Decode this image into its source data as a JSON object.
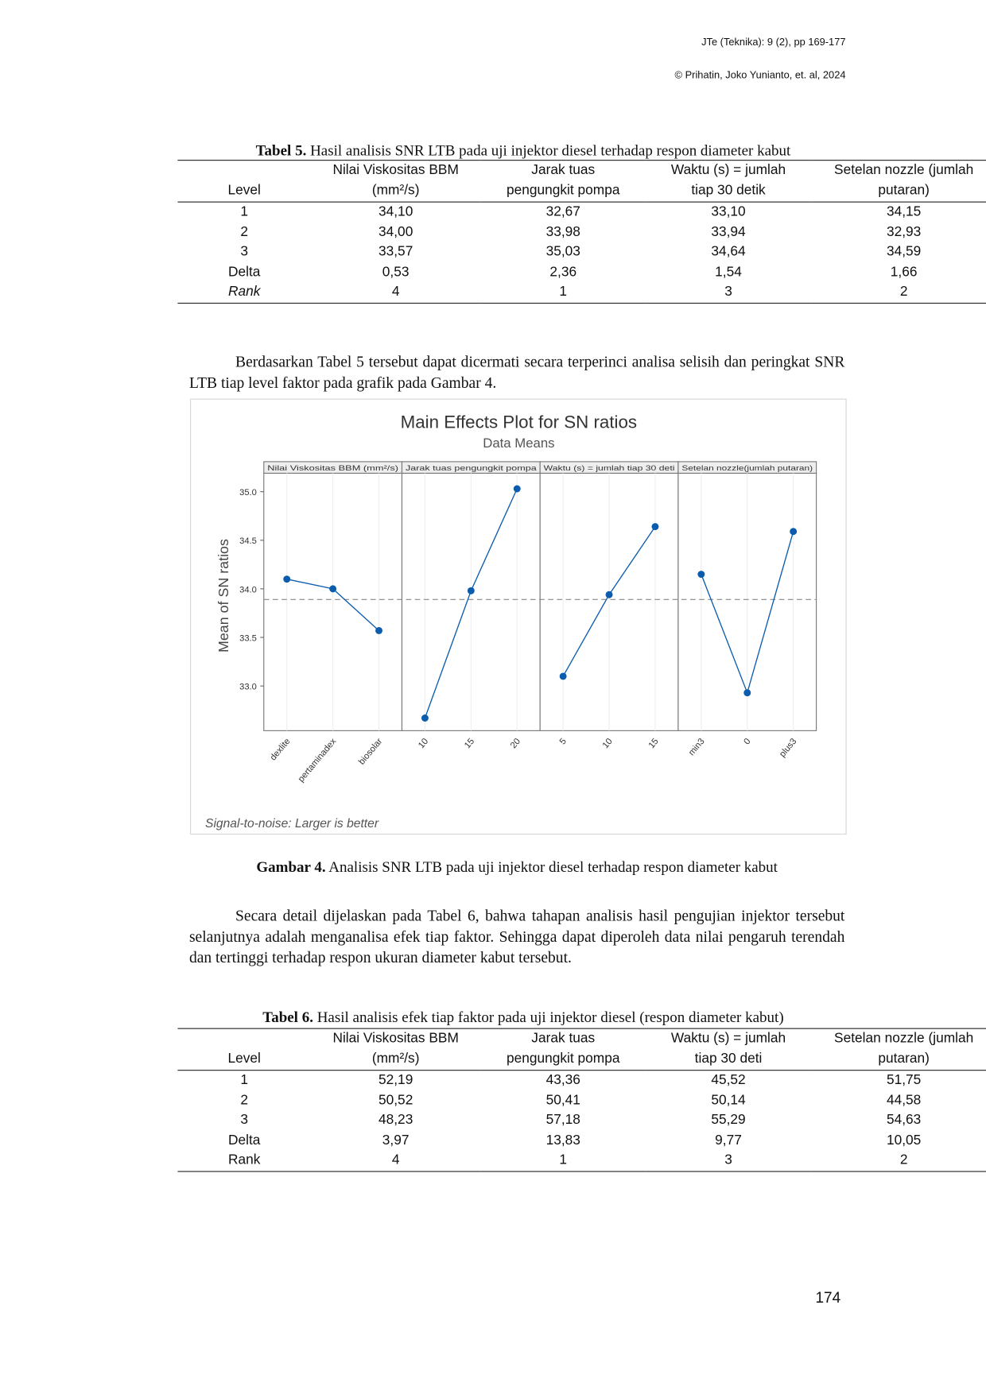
{
  "header": {
    "journal": "JTe (Teknika):  9 (2), pp 169-177",
    "copyright": "© Prihatin, Joko Yunianto, et. al, 2024"
  },
  "table5": {
    "caption_label": "Tabel 5.",
    "caption": "Hasil analisis SNR LTB pada uji injektor diesel terhadap respon diameter kabut",
    "header": [
      "Level",
      "Nilai Viskositas BBM (mm²/s)",
      "Jarak tuas pengungkit pompa",
      "Waktu (s) = jumlah tiap 30 detik",
      "Setelan nozzle (jumlah putaran)"
    ],
    "rows": [
      [
        "1",
        "34,10",
        "32,67",
        "33,10",
        "34,15"
      ],
      [
        "2",
        "34,00",
        "33,98",
        "33,94",
        "32,93"
      ],
      [
        "3",
        "33,57",
        "35,03",
        "34,64",
        "34,59"
      ],
      [
        "Delta",
        "0,53",
        "2,36",
        "1,54",
        "1,66"
      ],
      [
        "Rank",
        "4",
        "1",
        "3",
        "2"
      ]
    ]
  },
  "paragraph1": "Berdasarkan Tabel 5 tersebut dapat dicermati secara terperinci analisa selisih dan peringkat SNR LTB tiap level faktor pada grafik pada Gambar 4.",
  "chart_data": {
    "type": "panel_line",
    "title": "Main Effects Plot for SN ratios",
    "subtitle": "Data Means",
    "ylabel": "Mean of SN ratios",
    "footnote": "Signal-to-noise: Larger is better",
    "ylim": [
      32.54,
      35.19
    ],
    "yticks": [
      {
        "value": 33,
        "label": "33.0"
      },
      33.5,
      {
        "value": 34,
        "label": "34.0"
      },
      34.5,
      {
        "value": 35,
        "label": "35.0"
      }
    ],
    "mean_line": 33.89,
    "color": "#0b5cad",
    "panels": [
      {
        "title": "Nilai Viskositas BBM (mm²/s)",
        "categories": [
          "dexlite",
          "pertaminadex",
          "biosolar"
        ],
        "values": [
          34.1,
          34.0,
          33.57
        ]
      },
      {
        "title": "Jarak tuas pengungkit pompa",
        "categories": [
          "10",
          "15",
          "20"
        ],
        "values": [
          32.67,
          33.98,
          35.03
        ]
      },
      {
        "title": "Waktu (s) = jumlah tiap 30 deti",
        "categories": [
          "5",
          "10",
          "15"
        ],
        "values": [
          33.1,
          33.94,
          34.64
        ]
      },
      {
        "title": "Setelan nozzle(jumlah putaran)",
        "categories": [
          "min3",
          "0",
          "plus3"
        ],
        "values": [
          34.15,
          32.93,
          34.59
        ]
      }
    ]
  },
  "figure": {
    "caption_label": "Gambar 4.",
    "caption": "Analisis SNR LTB pada uji injektor diesel terhadap respon diameter kabut"
  },
  "paragraph2": "Secara detail dijelaskan pada Tabel 6, bahwa tahapan analisis hasil pengujian injektor tersebut selanjutnya adalah menganalisa efek tiap faktor. Sehingga dapat diperoleh data nilai pengaruh terendah dan tertinggi terhadap respon ukuran diameter kabut tersebut.",
  "table6": {
    "caption_label": "Tabel 6.",
    "caption": "Hasil analisis efek tiap faktor pada uji injektor diesel (respon diameter kabut)",
    "header": [
      "Level",
      "Nilai Viskositas BBM (mm²/s)",
      "Jarak tuas pengungkit pompa",
      "Waktu (s) = jumlah tiap 30 deti",
      "Setelan nozzle (jumlah putaran)"
    ],
    "rows": [
      [
        "1",
        "52,19",
        "43,36",
        "45,52",
        "51,75"
      ],
      [
        "2",
        "50,52",
        "50,41",
        "50,14",
        "44,58"
      ],
      [
        "3",
        "48,23",
        "57,18",
        "55,29",
        "54,63"
      ],
      [
        "Delta",
        "3,97",
        "13,83",
        "9,77",
        "10,05"
      ],
      [
        "Rank",
        "4",
        "1",
        "3",
        "2"
      ]
    ]
  },
  "page_number": "174"
}
